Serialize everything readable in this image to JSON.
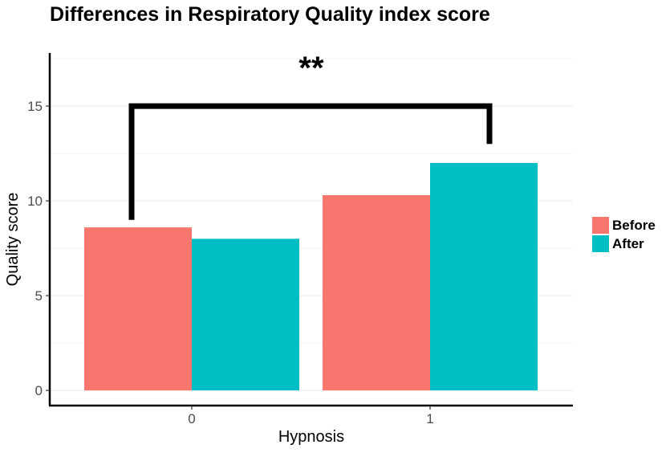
{
  "chart_data": {
    "type": "bar",
    "title": "Differences in Respiratory Quality index score",
    "xlabel": "Hypnosis",
    "ylabel": "Quality score",
    "categories": [
      "0",
      "1"
    ],
    "series": [
      {
        "name": "Before",
        "color": "#F8766D",
        "values": [
          8.6,
          10.3
        ]
      },
      {
        "name": "After",
        "color": "#00BFC4",
        "values": [
          8.0,
          12.0
        ]
      }
    ],
    "ylim": [
      -0.8,
      17.8
    ],
    "yticks": [
      0,
      5,
      10,
      15
    ],
    "grid": true,
    "legend_position": "right",
    "annotations": [
      {
        "type": "significance-bracket",
        "label": "**",
        "from_category": "0",
        "to_category": "1",
        "y": 15,
        "left_end": 9,
        "right_end": 13
      }
    ]
  }
}
